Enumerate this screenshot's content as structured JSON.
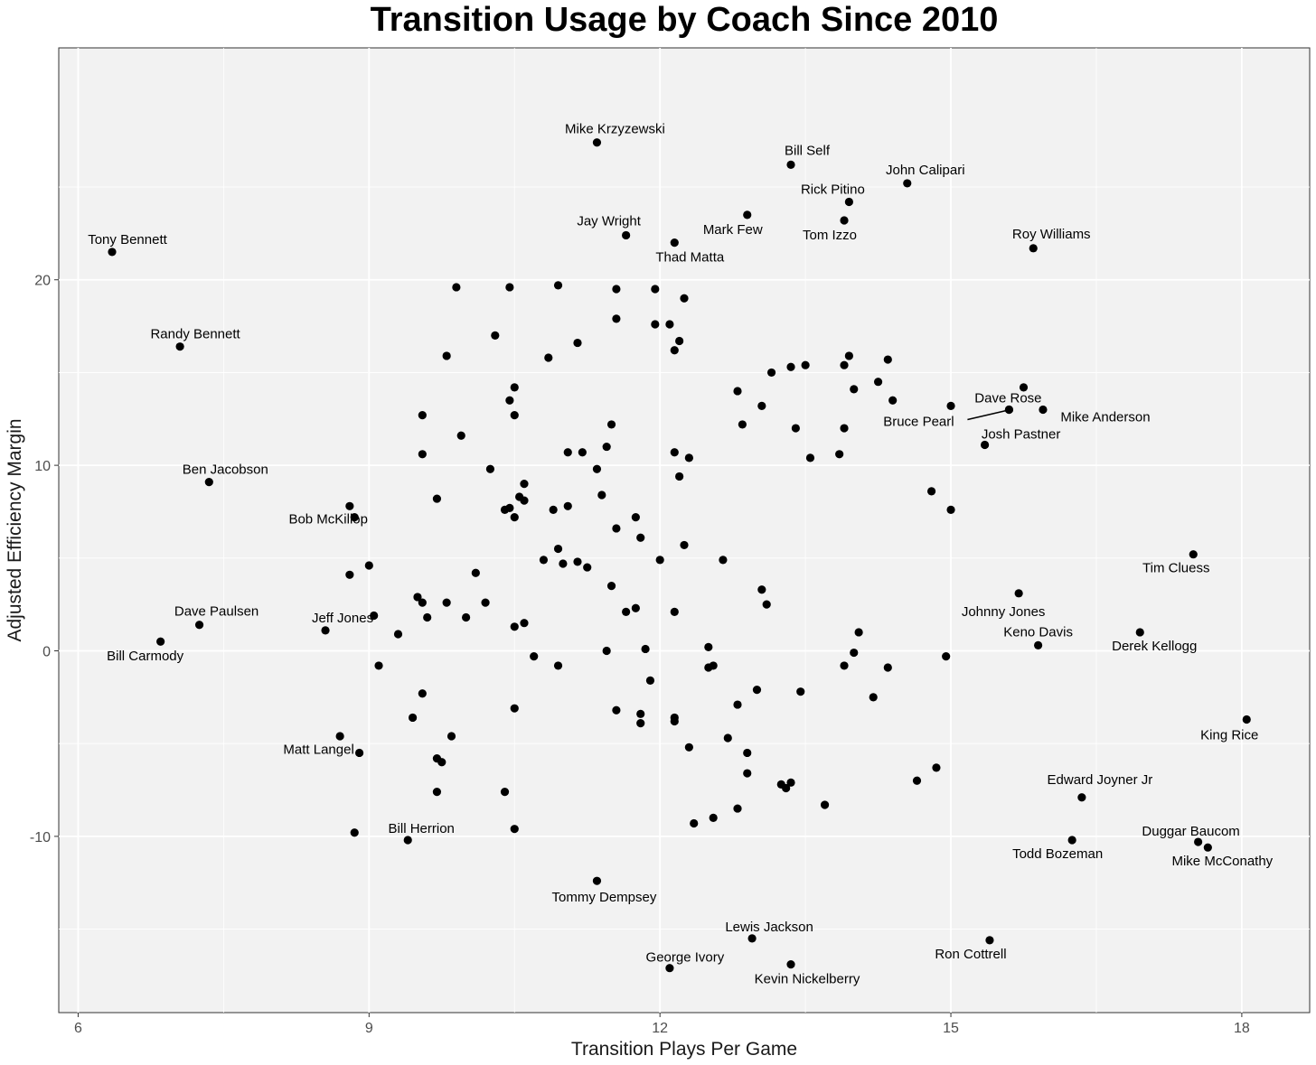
{
  "chart_data": {
    "type": "scatter",
    "title": "Transition Usage by Coach Since 2010",
    "xlabel": "Transition Plays Per Game",
    "ylabel": "Adjusted Efficiency Margin",
    "xlim": [
      5.8,
      18.7
    ],
    "ylim": [
      -19.5,
      32.5
    ],
    "x_ticks": [
      6,
      9,
      12,
      15,
      18
    ],
    "y_ticks": [
      -10,
      0,
      10,
      20
    ],
    "grid": true,
    "colors": {
      "panel": "#f2f2f2",
      "grid": "#ffffff",
      "point": "#000000"
    },
    "labeled_points": [
      {
        "name": "Mike Krzyzewski",
        "x": 11.35,
        "y": 27.4
      },
      {
        "name": "Bill Self",
        "x": 13.35,
        "y": 26.2
      },
      {
        "name": "John Calipari",
        "x": 14.55,
        "y": 25.2
      },
      {
        "name": "Rick Pitino",
        "x": 13.95,
        "y": 24.2
      },
      {
        "name": "Mark Few",
        "x": 12.9,
        "y": 23.5
      },
      {
        "name": "Tom Izzo",
        "x": 13.9,
        "y": 23.2
      },
      {
        "name": "Jay Wright",
        "x": 11.65,
        "y": 22.4
      },
      {
        "name": "Thad Matta",
        "x": 12.15,
        "y": 22.0
      },
      {
        "name": "Roy Williams",
        "x": 15.85,
        "y": 21.7
      },
      {
        "name": "Tony Bennett",
        "x": 6.35,
        "y": 21.5
      },
      {
        "name": "Randy Bennett",
        "x": 7.05,
        "y": 16.4
      },
      {
        "name": "Dave Rose",
        "x": 15.6,
        "y": 13.0
      },
      {
        "name": "Bruce Pearl",
        "x": 15.6,
        "y": 13.0
      },
      {
        "name": "Mike Anderson",
        "x": 15.95,
        "y": 13.0
      },
      {
        "name": "Josh Pastner",
        "x": 15.35,
        "y": 11.1
      },
      {
        "name": "Ben Jacobson",
        "x": 7.35,
        "y": 9.1
      },
      {
        "name": "Bob McKillop",
        "x": 8.85,
        "y": 7.2
      },
      {
        "name": "Tim Cluess",
        "x": 17.5,
        "y": 5.2
      },
      {
        "name": "Johnny Jones",
        "x": 15.7,
        "y": 3.1
      },
      {
        "name": "Dave Paulsen",
        "x": 7.25,
        "y": 1.4
      },
      {
        "name": "Jeff Jones",
        "x": 8.55,
        "y": 1.1
      },
      {
        "name": "Derek Kellogg",
        "x": 16.95,
        "y": 1.0
      },
      {
        "name": "Keno Davis",
        "x": 15.9,
        "y": 0.3
      },
      {
        "name": "Bill Carmody",
        "x": 6.85,
        "y": 0.5
      },
      {
        "name": "King Rice",
        "x": 18.05,
        "y": -3.7
      },
      {
        "name": "Matt Langel",
        "x": 8.9,
        "y": -5.5
      },
      {
        "name": "Edward Joyner Jr",
        "x": 16.35,
        "y": -7.9
      },
      {
        "name": "Bill Herrion",
        "x": 9.4,
        "y": -10.2
      },
      {
        "name": "Todd Bozeman",
        "x": 16.25,
        "y": -10.2
      },
      {
        "name": "Duggar Baucom",
        "x": 17.55,
        "y": -10.3
      },
      {
        "name": "Mike McConathy",
        "x": 17.65,
        "y": -10.6
      },
      {
        "name": "Tommy Dempsey",
        "x": 11.35,
        "y": -12.4
      },
      {
        "name": "Lewis Jackson",
        "x": 12.95,
        "y": -15.5
      },
      {
        "name": "Ron Cottrell",
        "x": 15.4,
        "y": -15.6
      },
      {
        "name": "Kevin Nickelberry",
        "x": 13.35,
        "y": -16.9
      },
      {
        "name": "George Ivory",
        "x": 12.1,
        "y": -17.1
      }
    ],
    "other_points": [
      [
        9.9,
        19.6
      ],
      [
        10.45,
        19.6
      ],
      [
        10.95,
        19.7
      ],
      [
        11.55,
        19.5
      ],
      [
        11.95,
        19.5
      ],
      [
        12.25,
        19.0
      ],
      [
        11.55,
        17.9
      ],
      [
        11.95,
        17.6
      ],
      [
        12.1,
        17.6
      ],
      [
        10.3,
        17.0
      ],
      [
        11.15,
        16.6
      ],
      [
        12.2,
        16.7
      ],
      [
        12.15,
        16.2
      ],
      [
        9.8,
        15.9
      ],
      [
        10.85,
        15.8
      ],
      [
        13.95,
        15.9
      ],
      [
        14.35,
        15.7
      ],
      [
        13.5,
        15.4
      ],
      [
        13.35,
        15.3
      ],
      [
        13.15,
        15.0
      ],
      [
        13.9,
        15.4
      ],
      [
        14.25,
        14.5
      ],
      [
        15.75,
        14.2
      ],
      [
        10.5,
        14.2
      ],
      [
        12.8,
        14.0
      ],
      [
        14.0,
        14.1
      ],
      [
        10.45,
        13.5
      ],
      [
        14.4,
        13.5
      ],
      [
        13.05,
        13.2
      ],
      [
        15.0,
        13.2
      ],
      [
        9.55,
        12.7
      ],
      [
        10.5,
        12.7
      ],
      [
        11.5,
        12.2
      ],
      [
        12.85,
        12.2
      ],
      [
        13.4,
        12.0
      ],
      [
        13.9,
        12.0
      ],
      [
        9.95,
        11.6
      ],
      [
        11.45,
        11.0
      ],
      [
        9.55,
        10.6
      ],
      [
        11.05,
        10.7
      ],
      [
        11.2,
        10.7
      ],
      [
        12.15,
        10.7
      ],
      [
        12.3,
        10.4
      ],
      [
        13.55,
        10.4
      ],
      [
        13.85,
        10.6
      ],
      [
        10.25,
        9.8
      ],
      [
        11.35,
        9.8
      ],
      [
        12.2,
        9.4
      ],
      [
        10.6,
        9.0
      ],
      [
        14.8,
        8.6
      ],
      [
        9.7,
        8.2
      ],
      [
        10.55,
        8.3
      ],
      [
        10.6,
        8.1
      ],
      [
        11.4,
        8.4
      ],
      [
        8.8,
        7.8
      ],
      [
        10.4,
        7.6
      ],
      [
        10.45,
        7.7
      ],
      [
        10.9,
        7.6
      ],
      [
        11.05,
        7.8
      ],
      [
        15.0,
        7.6
      ],
      [
        10.5,
        7.2
      ],
      [
        11.75,
        7.2
      ],
      [
        11.55,
        6.6
      ],
      [
        11.8,
        6.1
      ],
      [
        12.25,
        5.7
      ],
      [
        10.95,
        5.5
      ],
      [
        10.8,
        4.9
      ],
      [
        11.0,
        4.7
      ],
      [
        11.15,
        4.8
      ],
      [
        11.25,
        4.5
      ],
      [
        12.0,
        4.9
      ],
      [
        12.65,
        4.9
      ],
      [
        9.0,
        4.6
      ],
      [
        8.8,
        4.1
      ],
      [
        10.1,
        4.2
      ],
      [
        11.5,
        3.5
      ],
      [
        13.05,
        3.3
      ],
      [
        9.5,
        2.9
      ],
      [
        9.55,
        2.6
      ],
      [
        9.8,
        2.6
      ],
      [
        10.2,
        2.6
      ],
      [
        13.1,
        2.5
      ],
      [
        11.65,
        2.1
      ],
      [
        11.75,
        2.3
      ],
      [
        12.15,
        2.1
      ],
      [
        9.05,
        1.9
      ],
      [
        9.6,
        1.8
      ],
      [
        10.0,
        1.8
      ],
      [
        10.6,
        1.5
      ],
      [
        10.5,
        1.3
      ],
      [
        14.05,
        1.0
      ],
      [
        9.3,
        0.9
      ],
      [
        12.5,
        0.2
      ],
      [
        11.85,
        0.1
      ],
      [
        11.45,
        0.0
      ],
      [
        14.0,
        -0.1
      ],
      [
        14.95,
        -0.3
      ],
      [
        10.7,
        -0.3
      ],
      [
        9.1,
        -0.8
      ],
      [
        10.95,
        -0.8
      ],
      [
        12.55,
        -0.8
      ],
      [
        12.5,
        -0.9
      ],
      [
        13.9,
        -0.8
      ],
      [
        14.35,
        -0.9
      ],
      [
        11.9,
        -1.6
      ],
      [
        9.55,
        -2.3
      ],
      [
        13.0,
        -2.1
      ],
      [
        13.45,
        -2.2
      ],
      [
        14.2,
        -2.5
      ],
      [
        12.8,
        -2.9
      ],
      [
        10.5,
        -3.1
      ],
      [
        11.55,
        -3.2
      ],
      [
        11.8,
        -3.4
      ],
      [
        12.15,
        -3.6
      ],
      [
        12.15,
        -3.8
      ],
      [
        9.45,
        -3.6
      ],
      [
        11.8,
        -3.9
      ],
      [
        9.85,
        -4.6
      ],
      [
        8.7,
        -4.6
      ],
      [
        12.7,
        -4.7
      ],
      [
        12.3,
        -5.2
      ],
      [
        12.9,
        -5.5
      ],
      [
        9.7,
        -5.8
      ],
      [
        9.75,
        -6.0
      ],
      [
        14.85,
        -6.3
      ],
      [
        12.9,
        -6.6
      ],
      [
        14.65,
        -7.0
      ],
      [
        13.25,
        -7.2
      ],
      [
        13.35,
        -7.1
      ],
      [
        13.3,
        -7.4
      ],
      [
        9.7,
        -7.6
      ],
      [
        10.4,
        -7.6
      ],
      [
        13.7,
        -8.3
      ],
      [
        12.8,
        -8.5
      ],
      [
        12.55,
        -9.0
      ],
      [
        12.35,
        -9.3
      ],
      [
        8.85,
        -9.8
      ],
      [
        10.5,
        -9.6
      ]
    ]
  }
}
